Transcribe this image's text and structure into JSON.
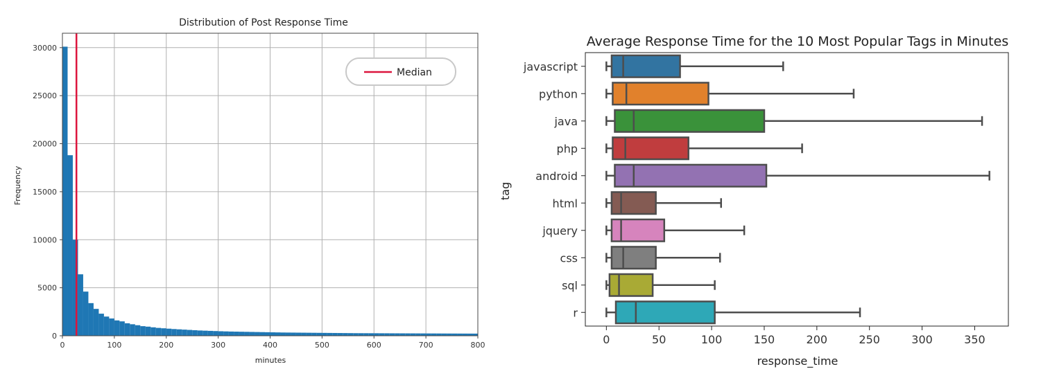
{
  "chart_data": [
    {
      "type": "bar",
      "title": "Distribution of Post Response Time",
      "xlabel": "minutes",
      "ylabel": "Frequency",
      "xlim": [
        0,
        800
      ],
      "ylim": [
        0,
        31500
      ],
      "xticks": [
        "0",
        "100",
        "200",
        "300",
        "400",
        "500",
        "600",
        "700",
        "800"
      ],
      "yticks": [
        "0",
        "5000",
        "10000",
        "15000",
        "20000",
        "25000",
        "30000"
      ],
      "grid": true,
      "bar_color": "#1f77b4",
      "bin_width": 10,
      "bin_start": 0,
      "values": [
        30100,
        18800,
        10000,
        6400,
        4600,
        3400,
        2800,
        2300,
        2000,
        1800,
        1600,
        1500,
        1300,
        1200,
        1100,
        1000,
        950,
        880,
        820,
        780,
        740,
        700,
        670,
        640,
        610,
        580,
        550,
        530,
        510,
        490,
        470,
        455,
        440,
        430,
        420,
        410,
        400,
        390,
        380,
        370,
        360,
        350,
        340,
        335,
        330,
        325,
        320,
        315,
        310,
        305,
        300,
        295,
        290,
        285,
        280,
        275,
        270,
        268,
        266,
        264,
        262,
        260,
        258,
        256,
        254,
        252,
        250,
        248,
        246,
        244,
        242,
        240,
        238,
        236,
        234,
        232,
        230,
        228,
        226,
        224
      ],
      "median": 27,
      "median_color": "#dc143c",
      "legend": {
        "entries": [
          "Median"
        ],
        "placement": "top-right"
      }
    },
    {
      "type": "box",
      "title": "Average Response Time for the 10 Most Popular Tags in Minutes",
      "xlabel": "response_time",
      "ylabel": "tag",
      "xlim": [
        -20,
        382
      ],
      "xticks": [
        "0",
        "50",
        "100",
        "150",
        "200",
        "250",
        "300",
        "350"
      ],
      "categories": [
        "javascript",
        "python",
        "java",
        "php",
        "android",
        "html",
        "jquery",
        "css",
        "sql",
        "r"
      ],
      "boxes": [
        {
          "tag": "javascript",
          "min": 0,
          "q1": 5,
          "median": 16,
          "q3": 70,
          "max": 168,
          "color": "#3274a1"
        },
        {
          "tag": "python",
          "min": 0,
          "q1": 6,
          "median": 19,
          "q3": 97,
          "max": 235,
          "color": "#e1812c"
        },
        {
          "tag": "java",
          "min": 0,
          "q1": 8,
          "median": 26,
          "q3": 150,
          "max": 357,
          "color": "#3a923a"
        },
        {
          "tag": "php",
          "min": 0,
          "q1": 6,
          "median": 18,
          "q3": 78,
          "max": 186,
          "color": "#c03d3e"
        },
        {
          "tag": "android",
          "min": 0,
          "q1": 8,
          "median": 26,
          "q3": 152,
          "max": 364,
          "color": "#9372b2"
        },
        {
          "tag": "html",
          "min": 0,
          "q1": 5,
          "median": 14,
          "q3": 47,
          "max": 109,
          "color": "#845b53"
        },
        {
          "tag": "jquery",
          "min": 0,
          "q1": 5,
          "median": 14,
          "q3": 55,
          "max": 131,
          "color": "#d684bd"
        },
        {
          "tag": "css",
          "min": 0,
          "q1": 5,
          "median": 16,
          "q3": 47,
          "max": 108,
          "color": "#7f7f7f"
        },
        {
          "tag": "sql",
          "min": 0,
          "q1": 3,
          "median": 12,
          "q3": 44,
          "max": 103,
          "color": "#a9aa35"
        },
        {
          "tag": "r",
          "min": 0,
          "q1": 9,
          "median": 28,
          "q3": 103,
          "max": 241,
          "color": "#2ea8b7"
        }
      ]
    }
  ]
}
